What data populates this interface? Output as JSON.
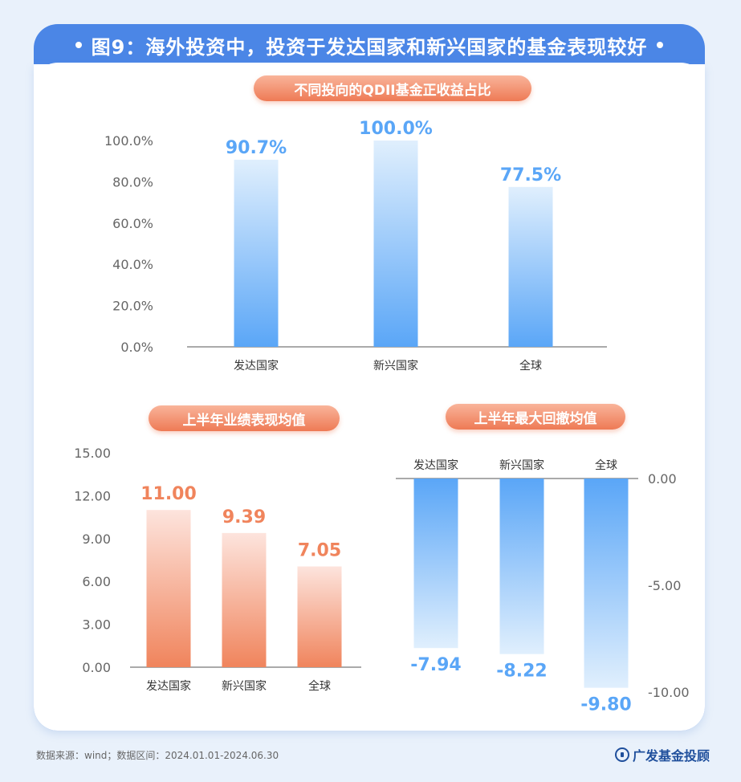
{
  "header": {
    "title": "图9：海外投资中，投资于发达国家和新兴国家的基金表现较好"
  },
  "chart_data": [
    {
      "type": "bar",
      "title": "不同投向的QDII基金正收益占比",
      "categories": [
        "发达国家",
        "新兴国家",
        "全球"
      ],
      "values": [
        90.7,
        100.0,
        77.5
      ],
      "value_labels": [
        "90.7%",
        "100.0%",
        "77.5%"
      ],
      "ylim": [
        0,
        100
      ],
      "yticks": [
        "0.0%",
        "20.0%",
        "40.0%",
        "60.0%",
        "80.0%",
        "100.0%"
      ],
      "color": "#5aa6f7",
      "grid": false
    },
    {
      "type": "bar",
      "title": "上半年业绩表现均值",
      "categories": [
        "发达国家",
        "新兴国家",
        "全球"
      ],
      "values": [
        11.0,
        9.39,
        7.05
      ],
      "value_labels": [
        "11.00",
        "9.39",
        "7.05"
      ],
      "ylim": [
        0,
        15
      ],
      "yticks": [
        "0.00",
        "3.00",
        "6.00",
        "9.00",
        "12.00",
        "15.00"
      ],
      "color": "#f0845c",
      "grid": false
    },
    {
      "type": "bar",
      "title": "上半年最大回撤均值",
      "categories": [
        "发达国家",
        "新兴国家",
        "全球"
      ],
      "values": [
        -7.94,
        -8.22,
        -9.8
      ],
      "value_labels": [
        "-7.94",
        "-8.22",
        "-9.80"
      ],
      "ylim": [
        -10,
        0
      ],
      "yticks": [
        "0.00",
        "-5.00",
        "-10.00"
      ],
      "color": "#5aa6f7",
      "grid": false
    }
  ],
  "footer": {
    "source": "数据来源：wind；数据区间：2024.01.01-2024.06.30",
    "brand": "广发基金投顾"
  }
}
